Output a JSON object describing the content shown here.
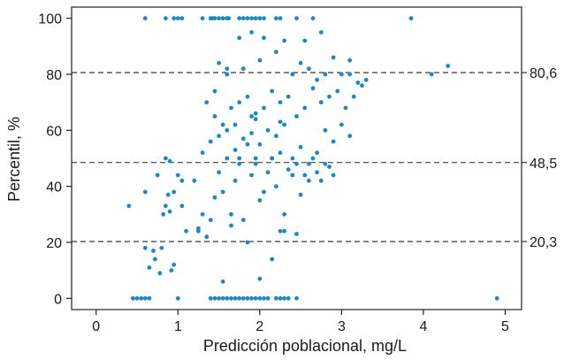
{
  "chart_data": {
    "type": "scatter",
    "title": "",
    "xlabel": "Predicción poblacional, mg/L",
    "ylabel": "Percentil, %",
    "xlim": [
      -0.3,
      5.2
    ],
    "ylim": [
      -4,
      104
    ],
    "xticks": [
      0,
      1,
      2,
      3,
      4,
      5
    ],
    "yticks": [
      0,
      20,
      40,
      60,
      80,
      100
    ],
    "xtick_labels": [
      "0",
      "1",
      "2",
      "3",
      "4",
      "5"
    ],
    "ytick_labels": [
      "0",
      "20",
      "40",
      "60",
      "80",
      "100"
    ],
    "grid": false,
    "legend": "none",
    "point_color": "#1e88c0",
    "reference_lines": [
      {
        "y": 80.6,
        "label": "80,6",
        "style": "dashed"
      },
      {
        "y": 48.5,
        "label": "48,5",
        "style": "dashed"
      },
      {
        "y": 20.3,
        "label": "20,3",
        "style": "dashed"
      }
    ],
    "series": [
      {
        "x": [
          0.6,
          0.85,
          0.95,
          1.0,
          1.05,
          1.3,
          1.4,
          1.42,
          1.45,
          1.5,
          1.55,
          1.6,
          1.62,
          1.75,
          1.8,
          1.85,
          1.9,
          1.95,
          2.0,
          2.05,
          2.2,
          2.25,
          2.45,
          2.65,
          3.85,
          0.45,
          0.5,
          0.55,
          0.6,
          0.65,
          1.0,
          1.4,
          1.45,
          1.5,
          1.55,
          1.6,
          1.65,
          1.7,
          1.75,
          1.8,
          1.85,
          1.9,
          1.95,
          2.0,
          2.05,
          2.1,
          2.2,
          2.25,
          2.3,
          2.35,
          2.45,
          4.9,
          0.4,
          0.6,
          0.65,
          0.7,
          0.72,
          0.75,
          0.78,
          0.8,
          0.82,
          0.85,
          0.88,
          0.9,
          0.92,
          0.95,
          1.0,
          1.05,
          1.1,
          1.2,
          0.85,
          0.9,
          0.95,
          1.25,
          1.3,
          1.35,
          1.4,
          1.45,
          1.5,
          1.55,
          1.6,
          1.65,
          1.7,
          1.75,
          1.8,
          1.85,
          1.9,
          1.95,
          2.0,
          2.05,
          2.1,
          2.15,
          2.2,
          2.25,
          2.3,
          2.35,
          2.4,
          2.45,
          2.5,
          2.55,
          2.6,
          2.65,
          2.7,
          2.75,
          2.8,
          2.85,
          2.9,
          1.3,
          1.4,
          1.5,
          1.6,
          1.7,
          1.8,
          1.9,
          2.0,
          2.1,
          2.2,
          2.3,
          2.4,
          2.5,
          2.6,
          2.7,
          2.8,
          2.9,
          3.0,
          3.1,
          1.45,
          1.55,
          1.65,
          1.75,
          1.85,
          1.95,
          2.05,
          2.15,
          2.25,
          2.35,
          2.45,
          2.55,
          2.65,
          2.75,
          2.85,
          2.95,
          3.05,
          3.15,
          3.25,
          3.3,
          3.2,
          3.1,
          1.35,
          1.45,
          1.6,
          1.8,
          2.0,
          2.2,
          2.4,
          2.5,
          2.6,
          2.7,
          2.8,
          2.9,
          3.0,
          3.1,
          4.1,
          4.3,
          1.75,
          1.9,
          2.05,
          2.3,
          2.55,
          2.75,
          1.25,
          1.65,
          1.95,
          2.25,
          1.85,
          2.15,
          2.3,
          1.55,
          2.0,
          2.45,
          1.7,
          1.9,
          0.6,
          1.05,
          1.75,
          1.95,
          2.15,
          2.25,
          1.5,
          1.6
        ],
        "y": [
          100,
          100,
          100,
          100,
          100,
          100,
          100,
          100,
          100,
          100,
          100,
          100,
          100,
          100,
          100,
          100,
          100,
          100,
          100,
          100,
          100,
          100,
          100,
          100,
          100,
          0,
          0,
          0,
          0,
          0,
          0,
          0,
          0,
          0,
          0,
          0,
          0,
          0,
          0,
          0,
          0,
          0,
          0,
          0,
          0,
          0,
          0,
          0,
          0,
          0,
          0,
          0,
          33,
          38,
          11,
          17,
          14,
          44,
          9,
          18,
          30,
          33,
          37,
          31,
          10,
          12,
          44,
          33,
          24,
          42,
          50,
          49,
          38,
          25,
          30,
          22,
          28,
          36,
          45,
          38,
          50,
          30,
          42,
          48,
          28,
          55,
          44,
          50,
          35,
          38,
          45,
          50,
          40,
          52,
          30,
          46,
          44,
          48,
          37,
          44,
          42,
          50,
          45,
          42,
          48,
          47,
          44,
          52,
          56,
          58,
          60,
          62,
          57,
          65,
          55,
          60,
          58,
          62,
          50,
          54,
          48,
          52,
          60,
          56,
          62,
          58,
          65,
          62,
          68,
          70,
          72,
          66,
          68,
          74,
          70,
          72,
          65,
          68,
          75,
          70,
          72,
          74,
          68,
          72,
          76,
          78,
          77,
          80,
          70,
          74,
          80,
          82,
          85,
          88,
          80,
          84,
          82,
          78,
          80,
          86,
          80,
          85,
          80,
          83,
          93,
          95,
          93,
          92,
          92,
          95,
          24,
          26,
          48,
          24,
          20,
          14,
          24,
          6,
          7,
          23,
          53,
          59,
          18,
          42,
          50,
          64,
          50,
          63,
          84,
          82
        ]
      }
    ]
  }
}
